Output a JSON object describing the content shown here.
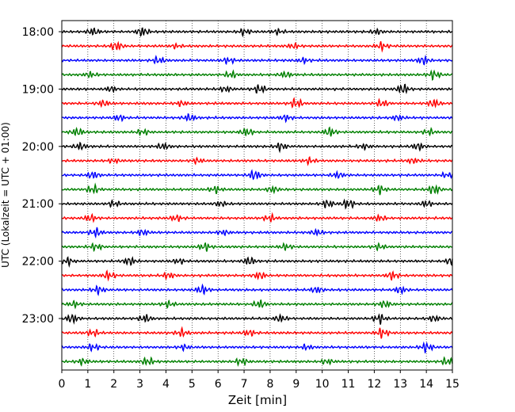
{
  "chart_data": {
    "type": "line",
    "title": "",
    "xlabel": "Zeit  [min]",
    "ylabel": "UTC (Lokalzeit = UTC + 01:00)",
    "xlim": [
      0,
      15
    ],
    "x_ticks": [
      "0",
      "1",
      "2",
      "3",
      "4",
      "5",
      "6",
      "7",
      "8",
      "9",
      "10",
      "11",
      "12",
      "13",
      "14",
      "15"
    ],
    "y_ticks": [
      "18:00",
      "19:00",
      "20:00",
      "21:00",
      "22:00",
      "23:00"
    ],
    "grid": "vertical dotted lines at each minute",
    "trace_interval_minutes": 15,
    "trace_start": "18:00",
    "trace_count": 24,
    "trace_colors": [
      "#000000",
      "#ff0000",
      "#0000ff",
      "#008000"
    ],
    "series": [
      {
        "start": "18:00",
        "color": "#000000",
        "bursts": [
          [
            1.2,
            0.7
          ],
          [
            3.1,
            0.9
          ],
          [
            7.0,
            0.6
          ],
          [
            8.3,
            0.5
          ],
          [
            12.1,
            0.5
          ]
        ]
      },
      {
        "start": "18:15",
        "color": "#ff0000",
        "bursts": [
          [
            2.1,
            0.9
          ],
          [
            4.4,
            0.4
          ],
          [
            8.9,
            0.5
          ],
          [
            12.3,
            0.8
          ]
        ]
      },
      {
        "start": "18:30",
        "color": "#0000ff",
        "bursts": [
          [
            3.7,
            0.7
          ],
          [
            6.4,
            0.6
          ],
          [
            9.3,
            0.5
          ],
          [
            13.9,
            0.8
          ]
        ]
      },
      {
        "start": "18:45",
        "color": "#008000",
        "bursts": [
          [
            1.1,
            0.5
          ],
          [
            6.5,
            0.7
          ],
          [
            8.6,
            0.6
          ],
          [
            14.3,
            0.9
          ]
        ]
      },
      {
        "start": "19:00",
        "color": "#000000",
        "bursts": [
          [
            1.9,
            0.5
          ],
          [
            6.3,
            0.5
          ],
          [
            7.6,
            0.9
          ],
          [
            13.1,
            1.0
          ]
        ]
      },
      {
        "start": "19:15",
        "color": "#ff0000",
        "bursts": [
          [
            1.6,
            0.6
          ],
          [
            4.6,
            0.5
          ],
          [
            9.0,
            1.0
          ],
          [
            12.3,
            0.7
          ],
          [
            14.3,
            0.8
          ]
        ]
      },
      {
        "start": "19:30",
        "color": "#0000ff",
        "bursts": [
          [
            2.2,
            0.6
          ],
          [
            4.9,
            0.7
          ],
          [
            8.6,
            0.6
          ],
          [
            12.9,
            0.5
          ]
        ]
      },
      {
        "start": "19:45",
        "color": "#008000",
        "bursts": [
          [
            0.6,
            0.8
          ],
          [
            3.1,
            0.6
          ],
          [
            7.1,
            0.8
          ],
          [
            10.3,
            0.9
          ],
          [
            14.1,
            0.6
          ]
        ]
      },
      {
        "start": "20:00",
        "color": "#000000",
        "bursts": [
          [
            0.7,
            0.7
          ],
          [
            3.9,
            0.6
          ],
          [
            8.4,
            0.8
          ],
          [
            11.6,
            0.5
          ],
          [
            13.7,
            0.7
          ]
        ]
      },
      {
        "start": "20:15",
        "color": "#ff0000",
        "bursts": [
          [
            2.0,
            0.4
          ],
          [
            5.2,
            0.5
          ],
          [
            9.5,
            0.6
          ],
          [
            13.5,
            0.5
          ]
        ]
      },
      {
        "start": "20:30",
        "color": "#0000ff",
        "bursts": [
          [
            1.2,
            0.7
          ],
          [
            7.4,
            1.0
          ],
          [
            10.6,
            0.6
          ],
          [
            14.8,
            0.5
          ]
        ]
      },
      {
        "start": "20:45",
        "color": "#008000",
        "bursts": [
          [
            1.2,
            0.9
          ],
          [
            5.9,
            0.7
          ],
          [
            8.1,
            0.6
          ],
          [
            12.2,
            0.9
          ],
          [
            14.3,
            1.0
          ]
        ]
      },
      {
        "start": "21:00",
        "color": "#000000",
        "bursts": [
          [
            2.0,
            0.6
          ],
          [
            6.1,
            0.5
          ],
          [
            10.2,
            0.8
          ],
          [
            11.0,
            1.0
          ],
          [
            14.0,
            0.6
          ]
        ]
      },
      {
        "start": "21:15",
        "color": "#ff0000",
        "bursts": [
          [
            1.1,
            0.7
          ],
          [
            4.4,
            0.6
          ],
          [
            8.0,
            0.7
          ],
          [
            12.2,
            0.6
          ]
        ]
      },
      {
        "start": "21:30",
        "color": "#0000ff",
        "bursts": [
          [
            1.3,
            0.9
          ],
          [
            3.1,
            0.6
          ],
          [
            6.2,
            0.5
          ],
          [
            9.8,
            0.6
          ]
        ]
      },
      {
        "start": "21:45",
        "color": "#008000",
        "bursts": [
          [
            1.3,
            0.7
          ],
          [
            5.5,
            0.8
          ],
          [
            8.6,
            0.6
          ],
          [
            12.2,
            0.6
          ]
        ]
      },
      {
        "start": "22:00",
        "color": "#000000",
        "bursts": [
          [
            0.2,
            0.8
          ],
          [
            2.6,
            0.8
          ],
          [
            4.5,
            0.5
          ],
          [
            7.2,
            0.8
          ],
          [
            15.0,
            0.9
          ]
        ]
      },
      {
        "start": "22:15",
        "color": "#ff0000",
        "bursts": [
          [
            1.8,
            0.8
          ],
          [
            4.1,
            0.6
          ],
          [
            7.6,
            0.7
          ],
          [
            12.7,
            0.8
          ]
        ]
      },
      {
        "start": "22:30",
        "color": "#0000ff",
        "bursts": [
          [
            1.4,
            0.8
          ],
          [
            5.4,
            0.9
          ],
          [
            9.8,
            0.6
          ],
          [
            13.0,
            0.7
          ]
        ]
      },
      {
        "start": "22:45",
        "color": "#008000",
        "bursts": [
          [
            0.5,
            0.6
          ],
          [
            4.1,
            0.6
          ],
          [
            7.6,
            0.8
          ],
          [
            12.4,
            0.7
          ]
        ]
      },
      {
        "start": "23:00",
        "color": "#000000",
        "bursts": [
          [
            0.4,
            0.9
          ],
          [
            3.2,
            0.8
          ],
          [
            8.4,
            0.7
          ],
          [
            12.2,
            1.0
          ],
          [
            14.3,
            0.6
          ]
        ]
      },
      {
        "start": "23:15",
        "color": "#ff0000",
        "bursts": [
          [
            1.2,
            0.7
          ],
          [
            4.6,
            0.8
          ],
          [
            7.2,
            0.6
          ],
          [
            12.3,
            1.0
          ]
        ]
      },
      {
        "start": "23:30",
        "color": "#0000ff",
        "bursts": [
          [
            1.2,
            0.7
          ],
          [
            4.7,
            0.5
          ],
          [
            9.4,
            0.5
          ],
          [
            14.0,
            1.0
          ]
        ]
      },
      {
        "start": "23:45",
        "color": "#008000",
        "bursts": [
          [
            0.8,
            0.6
          ],
          [
            3.3,
            0.8
          ],
          [
            6.9,
            0.7
          ],
          [
            10.2,
            0.5
          ],
          [
            14.8,
            0.8
          ]
        ]
      }
    ]
  }
}
